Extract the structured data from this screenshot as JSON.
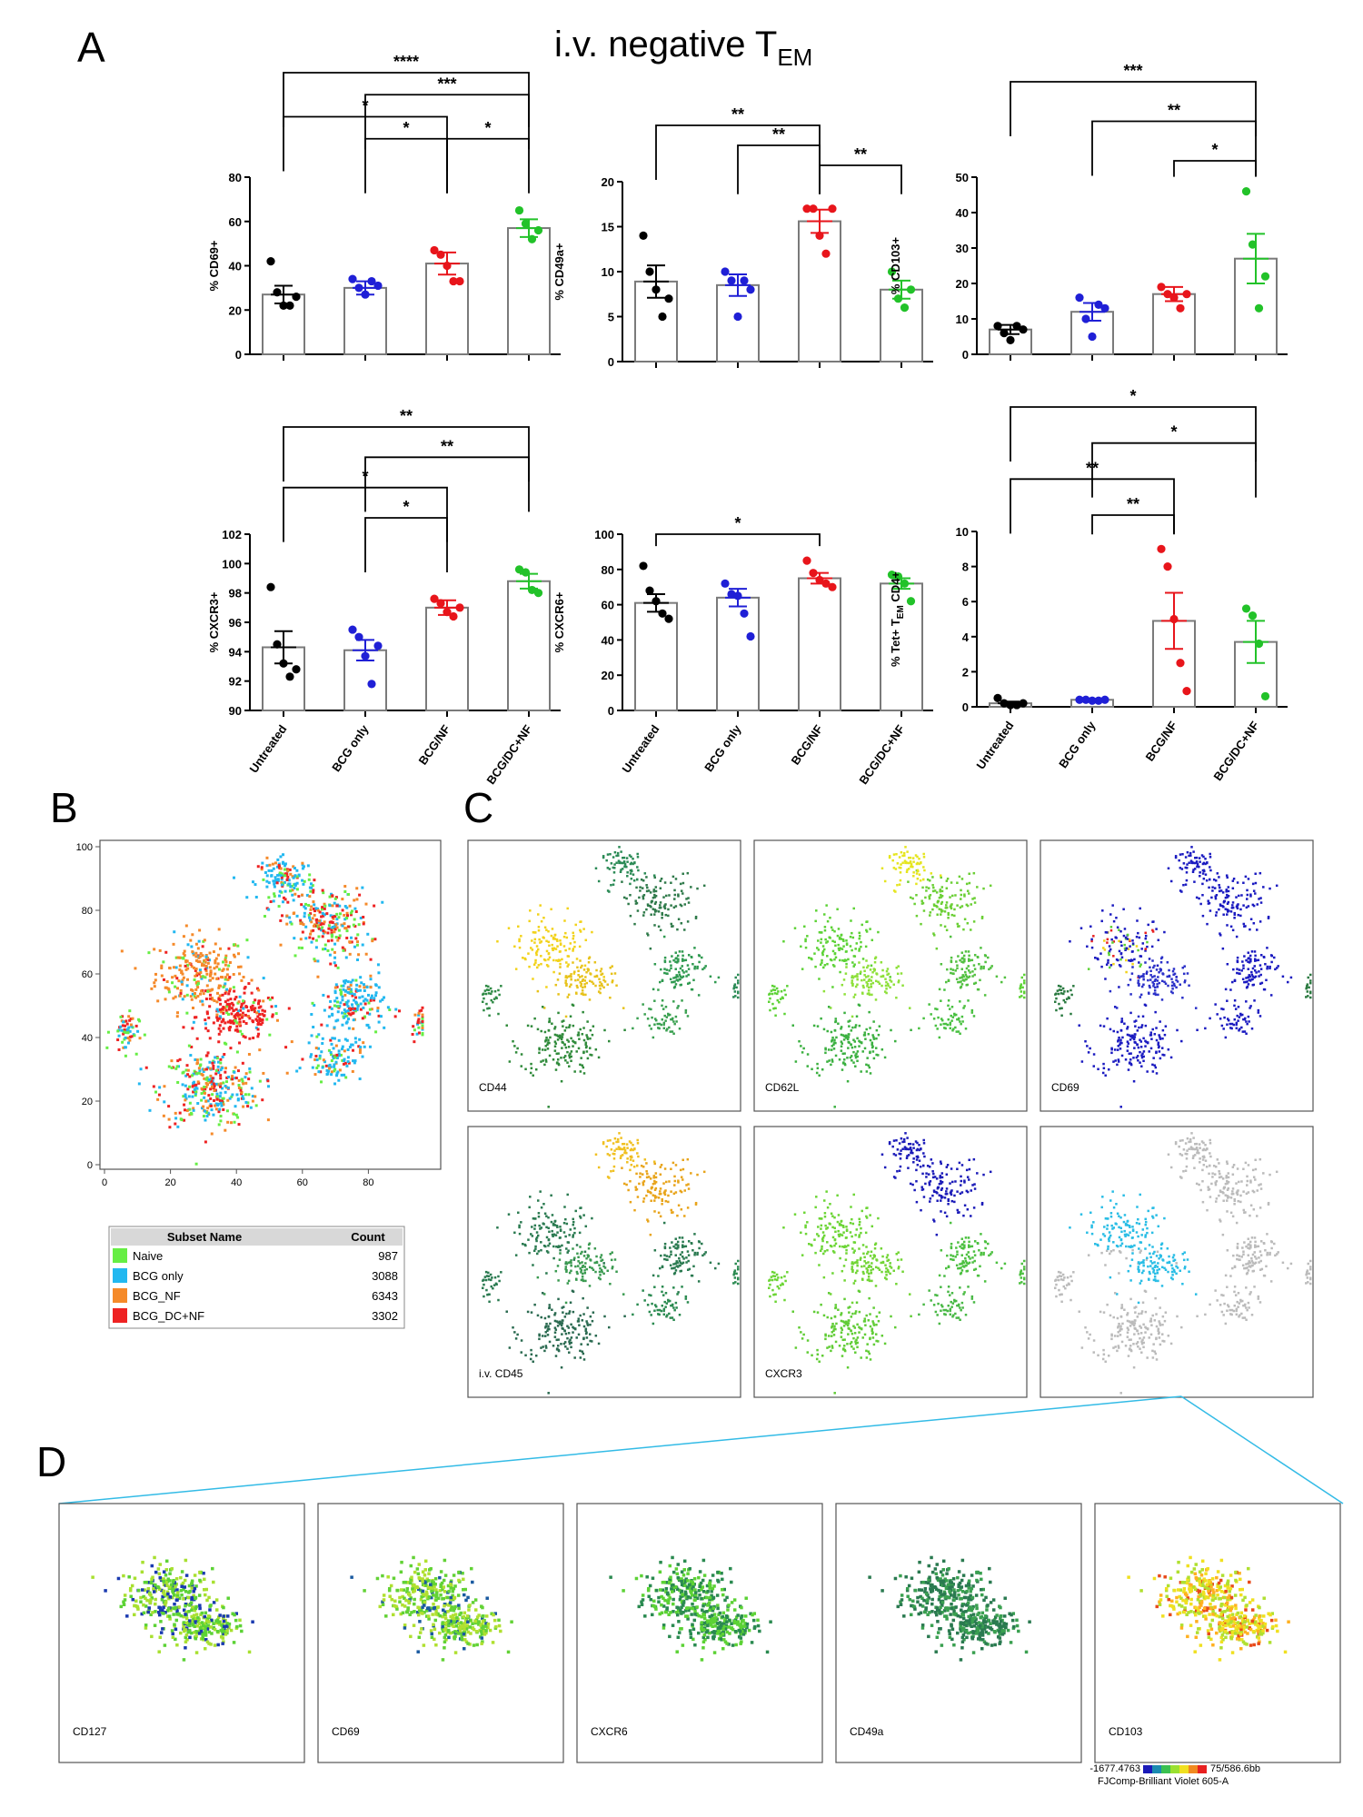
{
  "panel_labels": {
    "A": "A",
    "B": "B",
    "C": "C",
    "D": "D"
  },
  "title": {
    "main": "i.v. negative T",
    "sub": "EM"
  },
  "group_colors": [
    "#000000",
    "#1f1fd6",
    "#e8151b",
    "#22c229"
  ],
  "x_categories": [
    "Untreated",
    "BCG only",
    "BCG/NF",
    "BCG/DC+NF"
  ],
  "chart_data": [
    {
      "type": "bar",
      "ylabel": "% CD69+",
      "ylim": [
        0,
        80
      ],
      "yticks": [
        "0",
        "20",
        "40",
        "60",
        "80"
      ],
      "categories": [
        "Untreated",
        "BCG only",
        "BCG/NF",
        "BCG/DC+NF"
      ],
      "means": [
        27,
        30,
        41,
        57
      ],
      "sem": [
        4,
        3,
        5,
        4
      ],
      "points": [
        [
          42,
          28,
          22,
          22,
          26
        ],
        [
          34,
          30,
          27,
          33,
          31
        ],
        [
          47,
          45,
          40,
          33,
          33
        ],
        [
          65,
          59,
          52,
          56
        ]
      ],
      "sig": [
        [
          "****",
          0,
          3
        ],
        [
          "***",
          1,
          3
        ],
        [
          "*",
          0,
          2
        ],
        [
          "*",
          1,
          2
        ],
        [
          "*",
          2,
          3
        ]
      ]
    },
    {
      "type": "bar",
      "ylabel": "% CD49a+",
      "ylim": [
        0,
        20
      ],
      "yticks": [
        "0",
        "5",
        "10",
        "15",
        "20"
      ],
      "categories": [
        "Untreated",
        "BCG only",
        "BCG/NF",
        "BCG/DC+NF"
      ],
      "means": [
        8.9,
        8.5,
        15.6,
        8.0
      ],
      "sem": [
        1.8,
        1.2,
        1.3,
        1.0
      ],
      "points": [
        [
          14,
          10,
          8,
          5,
          7
        ],
        [
          10,
          9,
          5,
          9,
          8
        ],
        [
          17,
          17,
          14,
          12,
          17
        ],
        [
          10,
          7,
          6,
          8
        ]
      ],
      "sig": [
        [
          "**",
          0,
          2
        ],
        [
          "**",
          1,
          2
        ],
        [
          "**",
          2,
          3
        ]
      ]
    },
    {
      "type": "bar",
      "ylabel": "% CD103+",
      "ylim": [
        0,
        50
      ],
      "yticks": [
        "0",
        "10",
        "20",
        "30",
        "40",
        "50"
      ],
      "categories": [
        "Untreated",
        "BCG only",
        "BCG/NF",
        "BCG/DC+NF"
      ],
      "means": [
        7,
        12,
        17,
        27
      ],
      "sem": [
        1.3,
        2.5,
        2,
        7
      ],
      "points": [
        [
          8,
          6,
          4,
          8,
          7
        ],
        [
          16,
          10,
          5,
          14,
          13
        ],
        [
          19,
          17,
          16,
          13,
          17
        ],
        [
          46,
          31,
          13,
          22
        ]
      ],
      "sig": [
        [
          "***",
          0,
          3
        ],
        [
          "**",
          1,
          3
        ],
        [
          "*",
          2,
          3
        ]
      ]
    },
    {
      "type": "bar",
      "ylabel": "% CXCR3+",
      "ylim": [
        90,
        102
      ],
      "yticks": [
        "90",
        "92",
        "94",
        "96",
        "98",
        "100",
        "102"
      ],
      "categories": [
        "Untreated",
        "BCG only",
        "BCG/NF",
        "BCG/DC+NF"
      ],
      "means": [
        94.3,
        94.1,
        97.0,
        98.8
      ],
      "sem": [
        1.1,
        0.7,
        0.5,
        0.5
      ],
      "points": [
        [
          98.4,
          94.5,
          93.2,
          92.3,
          92.8
        ],
        [
          95.5,
          95.0,
          93.7,
          91.8,
          94.4
        ],
        [
          97.6,
          97.3,
          96.7,
          96.4,
          97.0
        ],
        [
          99.6,
          99.4,
          98.2,
          98.0
        ]
      ],
      "sig": [
        [
          "**",
          0,
          3
        ],
        [
          "**",
          1,
          3
        ],
        [
          "*",
          0,
          2
        ],
        [
          "*",
          1,
          2
        ]
      ]
    },
    {
      "type": "bar",
      "ylabel": "% CXCR6+",
      "ylim": [
        0,
        100
      ],
      "yticks": [
        "0",
        "20",
        "40",
        "60",
        "80",
        "100"
      ],
      "categories": [
        "Untreated",
        "BCG only",
        "BCG/NF",
        "BCG/DC+NF"
      ],
      "means": [
        61,
        64,
        75,
        72
      ],
      "sem": [
        5,
        5,
        3,
        3
      ],
      "points": [
        [
          82,
          68,
          62,
          55,
          52
        ],
        [
          72,
          66,
          65,
          55,
          42
        ],
        [
          85,
          78,
          74,
          72,
          70
        ],
        [
          77,
          76,
          72,
          62
        ]
      ],
      "sig": [
        [
          "*",
          0,
          2
        ]
      ]
    },
    {
      "type": "bar",
      "ylabel": "% Tet+ T",
      "ylabel_sub": "EM",
      "ylabel_end": " CD4+",
      "ylim": [
        0,
        10
      ],
      "yticks": [
        "0",
        "2",
        "4",
        "6",
        "8",
        "10"
      ],
      "categories": [
        "Untreated",
        "BCG only",
        "BCG/NF",
        "BCG/DC+NF"
      ],
      "means": [
        0.2,
        0.4,
        4.9,
        3.7
      ],
      "sem": [
        0.1,
        0.05,
        1.6,
        1.2
      ],
      "points": [
        [
          0.5,
          0.2,
          0.1,
          0.1,
          0.2
        ],
        [
          0.4,
          0.4,
          0.35,
          0.35,
          0.4
        ],
        [
          9.0,
          8.0,
          5.0,
          2.5,
          0.9
        ],
        [
          5.6,
          5.2,
          3.6,
          0.6
        ]
      ],
      "sig": [
        [
          "*",
          0,
          3
        ],
        [
          "*",
          1,
          3
        ],
        [
          "**",
          0,
          2
        ],
        [
          "**",
          1,
          2
        ]
      ]
    }
  ],
  "panel_b": {
    "xticks": [
      "0",
      "20",
      "40",
      "60",
      "80"
    ],
    "yticks": [
      "0",
      "20",
      "40",
      "60",
      "80",
      "100"
    ],
    "table": {
      "header": [
        "Subset Name",
        "Count"
      ],
      "rows": [
        {
          "name": "Naive",
          "count": "987",
          "color": "#66ee44"
        },
        {
          "name": "BCG only",
          "count": "3088",
          "color": "#22b8f0"
        },
        {
          "name": "BCG_NF",
          "count": "6343",
          "color": "#f58a2a"
        },
        {
          "name": "BCG_DC+NF",
          "count": "3302",
          "color": "#ee2222"
        }
      ]
    }
  },
  "panel_c": {
    "labels": [
      "CD44",
      "CD62L",
      "CD69",
      "i.v. CD45",
      "CXCR3",
      ""
    ]
  },
  "panel_d": {
    "labels": [
      "CD127",
      "CD69",
      "CXCR6",
      "CD49a",
      "CD103"
    ],
    "scale_min": "-1677.4763",
    "scale_max": "75/586.6bb",
    "scale_caption": "FJComp-Brilliant Violet 605-A"
  }
}
